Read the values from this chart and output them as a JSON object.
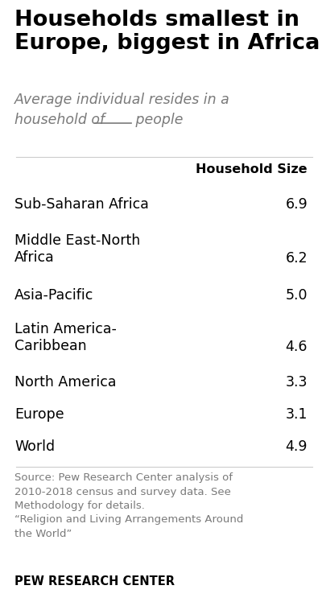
{
  "title": "Households smallest in\nEurope, biggest in Africa",
  "subtitle_line1": "Average individual resides in a",
  "subtitle_line2": "household of ___ people",
  "column_header": "Household Size",
  "regions": [
    "Sub-Saharan Africa",
    "Middle East-North\nAfrica",
    "Asia-Pacific",
    "Latin America-\nCaribbean",
    "North America",
    "Europe",
    "World"
  ],
  "values": [
    "6.9",
    "6.2",
    "5.0",
    "4.6",
    "3.3",
    "3.1",
    "4.9"
  ],
  "source_text": "Source: Pew Research Center analysis of\n2010-2018 census and survey data. See\nMethodology for details.\n“Religion and Living Arrangements Around\nthe World”",
  "footer": "PEW RESEARCH CENTER",
  "bg_color": "#ffffff",
  "title_color": "#000000",
  "subtitle_color": "#7a7a7a",
  "text_color": "#000000",
  "source_color": "#7a7a7a",
  "footer_color": "#000000",
  "sep_color": "#cccccc",
  "title_fontsize": 19.5,
  "subtitle_fontsize": 12.5,
  "header_fontsize": 11.5,
  "data_fontsize": 12.5,
  "source_fontsize": 9.5,
  "footer_fontsize": 10.5
}
